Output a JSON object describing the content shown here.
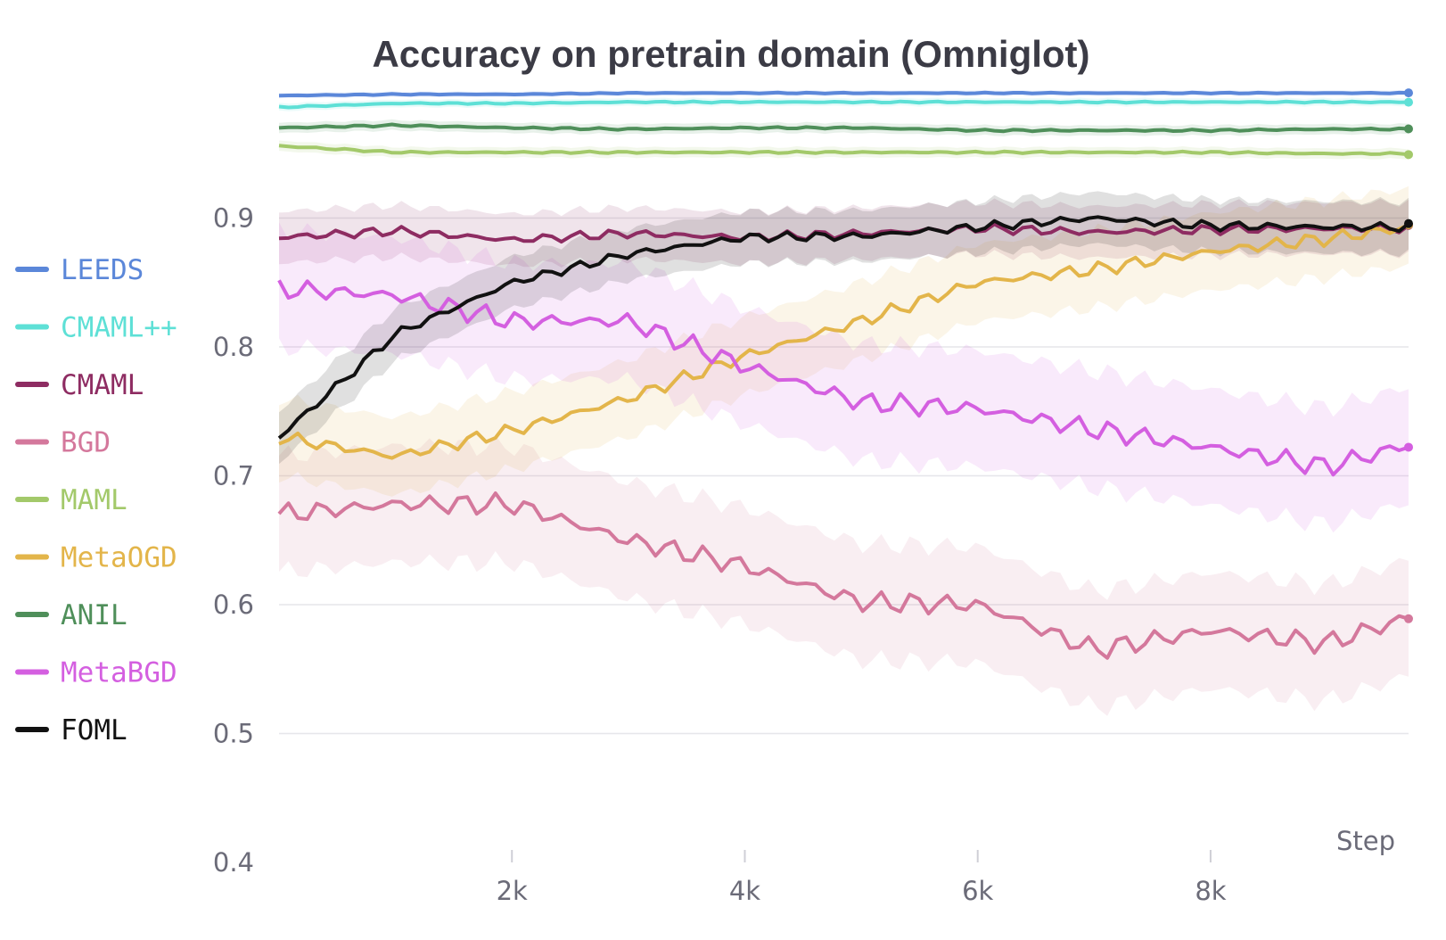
{
  "chart_data": {
    "type": "line",
    "title": "Accuracy on pretrain domain (Omniglot)",
    "xlabel": "Step",
    "ylabel": "",
    "xlim": [
      0,
      9700
    ],
    "ylim": [
      0.4,
      1.0
    ],
    "x_ticks": [
      2000,
      4000,
      6000,
      8000
    ],
    "x_tick_labels": [
      "2k",
      "4k",
      "6k",
      "8k"
    ],
    "y_ticks": [
      0.4,
      0.5,
      0.6,
      0.7,
      0.8,
      0.9
    ],
    "y_tick_labels": [
      "0.4",
      "0.5",
      "0.6",
      "0.7",
      "0.8",
      "0.9"
    ],
    "grid": true,
    "legend_position": "left",
    "x": [
      0,
      1000,
      2000,
      3000,
      4000,
      5000,
      6000,
      7000,
      8000,
      9000,
      9700
    ],
    "series": [
      {
        "name": "LEEDS",
        "color": "#5b87d9",
        "band": 0.002,
        "values": [
          0.995,
          0.996,
          0.996,
          0.997,
          0.997,
          0.997,
          0.997,
          0.997,
          0.997,
          0.997,
          0.997
        ]
      },
      {
        "name": "CMAML++",
        "color": "#5ee0d6",
        "band": 0.003,
        "values": [
          0.986,
          0.989,
          0.989,
          0.99,
          0.99,
          0.99,
          0.99,
          0.99,
          0.99,
          0.99,
          0.99
        ]
      },
      {
        "name": "CMAML",
        "color": "#8e2c62",
        "band": 0.02,
        "values": [
          0.885,
          0.89,
          0.883,
          0.888,
          0.885,
          0.888,
          0.892,
          0.889,
          0.891,
          0.892,
          0.892
        ]
      },
      {
        "name": "BGD",
        "color": "#d4789c",
        "band": 0.045,
        "values": [
          0.67,
          0.678,
          0.678,
          0.65,
          0.63,
          0.602,
          0.6,
          0.565,
          0.58,
          0.57,
          0.59
        ]
      },
      {
        "name": "MAML",
        "color": "#a3c96a",
        "band": 0.004,
        "values": [
          0.956,
          0.951,
          0.951,
          0.951,
          0.951,
          0.951,
          0.951,
          0.951,
          0.951,
          0.95,
          0.95
        ]
      },
      {
        "name": "MetaOGD",
        "color": "#e3b54a",
        "band": 0.03,
        "values": [
          0.73,
          0.715,
          0.735,
          0.76,
          0.793,
          0.82,
          0.85,
          0.86,
          0.874,
          0.884,
          0.893
        ]
      },
      {
        "name": "ANIL",
        "color": "#4f8f5a",
        "band": 0.004,
        "values": [
          0.97,
          0.972,
          0.97,
          0.969,
          0.97,
          0.97,
          0.968,
          0.968,
          0.968,
          0.969,
          0.969
        ]
      },
      {
        "name": "MetaBGD",
        "color": "#d45fe0",
        "band": 0.045,
        "values": [
          0.845,
          0.84,
          0.82,
          0.82,
          0.785,
          0.757,
          0.752,
          0.736,
          0.722,
          0.707,
          0.724
        ]
      },
      {
        "name": "FOML",
        "color": "#111111",
        "band": 0.02,
        "values": [
          0.73,
          0.81,
          0.85,
          0.872,
          0.885,
          0.886,
          0.893,
          0.9,
          0.894,
          0.893,
          0.893
        ]
      }
    ]
  }
}
